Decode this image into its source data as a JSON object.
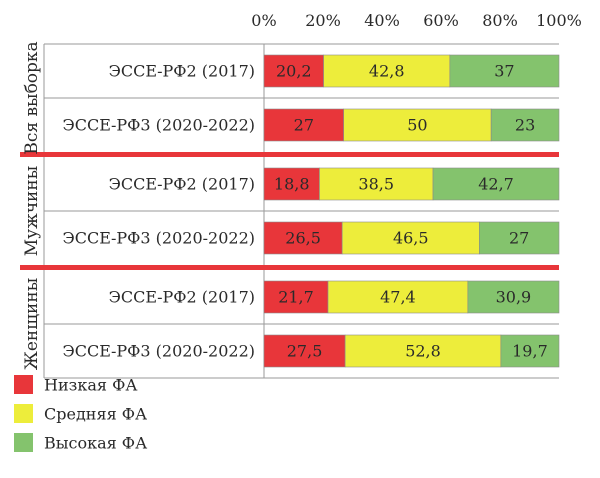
{
  "chart_data": {
    "type": "bar",
    "stacked": true,
    "orientation": "horizontal",
    "x_ticks": [
      "0%",
      "20%",
      "40%",
      "60%",
      "80%",
      "100%"
    ],
    "xlim": [
      0,
      100
    ],
    "groups": [
      {
        "label": "Вся выборка",
        "rows": [
          {
            "label": "ЭССЕ-РФ2 (2017)",
            "values": [
              20.2,
              42.8,
              37
            ],
            "labels": [
              "20,2",
              "42,8",
              "37"
            ]
          },
          {
            "label": "ЭССЕ-РФ3 (2020-2022)",
            "values": [
              27,
              50,
              23
            ],
            "labels": [
              "27",
              "50",
              "23"
            ]
          }
        ]
      },
      {
        "label": "Мужчины",
        "rows": [
          {
            "label": "ЭССЕ-РФ2 (2017)",
            "values": [
              18.8,
              38.5,
              42.7
            ],
            "labels": [
              "18,8",
              "38,5",
              "42,7"
            ]
          },
          {
            "label": "ЭССЕ-РФ3 (2020-2022)",
            "values": [
              26.5,
              46.5,
              27
            ],
            "labels": [
              "26,5",
              "46,5",
              "27"
            ]
          }
        ]
      },
      {
        "label": "Женщины",
        "rows": [
          {
            "label": "ЭССЕ-РФ2 (2017)",
            "values": [
              21.7,
              47.4,
              30.9
            ],
            "labels": [
              "21,7",
              "47,4",
              "30,9"
            ]
          },
          {
            "label": "ЭССЕ-РФ3 (2020-2022)",
            "values": [
              27.5,
              52.8,
              19.7
            ],
            "labels": [
              "27,5",
              "52,8",
              "19,7"
            ]
          }
        ]
      }
    ],
    "series": [
      {
        "name": "Низкая ФА",
        "color": "#e8363a"
      },
      {
        "name": "Средняя ФА",
        "color": "#eded3b"
      },
      {
        "name": "Высокая ФА",
        "color": "#84c36d"
      }
    ],
    "separator_color": "#e8363a",
    "legend_position": "bottom-left"
  }
}
